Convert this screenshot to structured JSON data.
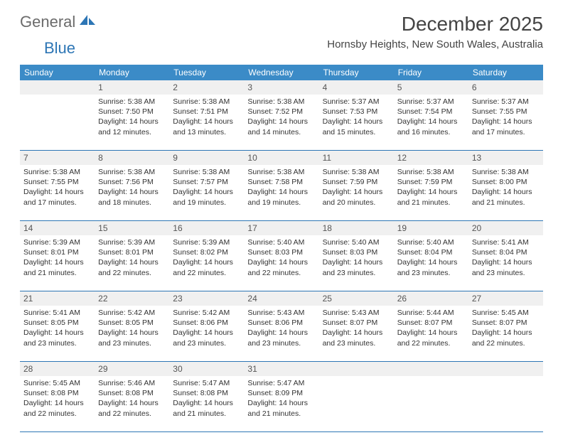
{
  "logo": {
    "part1": "General",
    "part2": "Blue"
  },
  "title": "December 2025",
  "location": "Hornsby Heights, New South Wales, Australia",
  "colors": {
    "header_bg": "#3b8bc7",
    "header_text": "#ffffff",
    "rule": "#2d76b5",
    "daynum_bg": "#f0f0f0",
    "body_text": "#333333",
    "logo_grey": "#6b6b6b",
    "logo_blue": "#2d76b5"
  },
  "day_names": [
    "Sunday",
    "Monday",
    "Tuesday",
    "Wednesday",
    "Thursday",
    "Friday",
    "Saturday"
  ],
  "weeks": [
    [
      null,
      {
        "n": "1",
        "sr": "5:38 AM",
        "ss": "7:50 PM",
        "dl": "14 hours and 12 minutes."
      },
      {
        "n": "2",
        "sr": "5:38 AM",
        "ss": "7:51 PM",
        "dl": "14 hours and 13 minutes."
      },
      {
        "n": "3",
        "sr": "5:38 AM",
        "ss": "7:52 PM",
        "dl": "14 hours and 14 minutes."
      },
      {
        "n": "4",
        "sr": "5:37 AM",
        "ss": "7:53 PM",
        "dl": "14 hours and 15 minutes."
      },
      {
        "n": "5",
        "sr": "5:37 AM",
        "ss": "7:54 PM",
        "dl": "14 hours and 16 minutes."
      },
      {
        "n": "6",
        "sr": "5:37 AM",
        "ss": "7:55 PM",
        "dl": "14 hours and 17 minutes."
      }
    ],
    [
      {
        "n": "7",
        "sr": "5:38 AM",
        "ss": "7:55 PM",
        "dl": "14 hours and 17 minutes."
      },
      {
        "n": "8",
        "sr": "5:38 AM",
        "ss": "7:56 PM",
        "dl": "14 hours and 18 minutes."
      },
      {
        "n": "9",
        "sr": "5:38 AM",
        "ss": "7:57 PM",
        "dl": "14 hours and 19 minutes."
      },
      {
        "n": "10",
        "sr": "5:38 AM",
        "ss": "7:58 PM",
        "dl": "14 hours and 19 minutes."
      },
      {
        "n": "11",
        "sr": "5:38 AM",
        "ss": "7:59 PM",
        "dl": "14 hours and 20 minutes."
      },
      {
        "n": "12",
        "sr": "5:38 AM",
        "ss": "7:59 PM",
        "dl": "14 hours and 21 minutes."
      },
      {
        "n": "13",
        "sr": "5:38 AM",
        "ss": "8:00 PM",
        "dl": "14 hours and 21 minutes."
      }
    ],
    [
      {
        "n": "14",
        "sr": "5:39 AM",
        "ss": "8:01 PM",
        "dl": "14 hours and 21 minutes."
      },
      {
        "n": "15",
        "sr": "5:39 AM",
        "ss": "8:01 PM",
        "dl": "14 hours and 22 minutes."
      },
      {
        "n": "16",
        "sr": "5:39 AM",
        "ss": "8:02 PM",
        "dl": "14 hours and 22 minutes."
      },
      {
        "n": "17",
        "sr": "5:40 AM",
        "ss": "8:03 PM",
        "dl": "14 hours and 22 minutes."
      },
      {
        "n": "18",
        "sr": "5:40 AM",
        "ss": "8:03 PM",
        "dl": "14 hours and 23 minutes."
      },
      {
        "n": "19",
        "sr": "5:40 AM",
        "ss": "8:04 PM",
        "dl": "14 hours and 23 minutes."
      },
      {
        "n": "20",
        "sr": "5:41 AM",
        "ss": "8:04 PM",
        "dl": "14 hours and 23 minutes."
      }
    ],
    [
      {
        "n": "21",
        "sr": "5:41 AM",
        "ss": "8:05 PM",
        "dl": "14 hours and 23 minutes."
      },
      {
        "n": "22",
        "sr": "5:42 AM",
        "ss": "8:05 PM",
        "dl": "14 hours and 23 minutes."
      },
      {
        "n": "23",
        "sr": "5:42 AM",
        "ss": "8:06 PM",
        "dl": "14 hours and 23 minutes."
      },
      {
        "n": "24",
        "sr": "5:43 AM",
        "ss": "8:06 PM",
        "dl": "14 hours and 23 minutes."
      },
      {
        "n": "25",
        "sr": "5:43 AM",
        "ss": "8:07 PM",
        "dl": "14 hours and 23 minutes."
      },
      {
        "n": "26",
        "sr": "5:44 AM",
        "ss": "8:07 PM",
        "dl": "14 hours and 22 minutes."
      },
      {
        "n": "27",
        "sr": "5:45 AM",
        "ss": "8:07 PM",
        "dl": "14 hours and 22 minutes."
      }
    ],
    [
      {
        "n": "28",
        "sr": "5:45 AM",
        "ss": "8:08 PM",
        "dl": "14 hours and 22 minutes."
      },
      {
        "n": "29",
        "sr": "5:46 AM",
        "ss": "8:08 PM",
        "dl": "14 hours and 22 minutes."
      },
      {
        "n": "30",
        "sr": "5:47 AM",
        "ss": "8:08 PM",
        "dl": "14 hours and 21 minutes."
      },
      {
        "n": "31",
        "sr": "5:47 AM",
        "ss": "8:09 PM",
        "dl": "14 hours and 21 minutes."
      },
      null,
      null,
      null
    ]
  ],
  "labels": {
    "sunrise": "Sunrise:",
    "sunset": "Sunset:",
    "daylight": "Daylight:"
  }
}
